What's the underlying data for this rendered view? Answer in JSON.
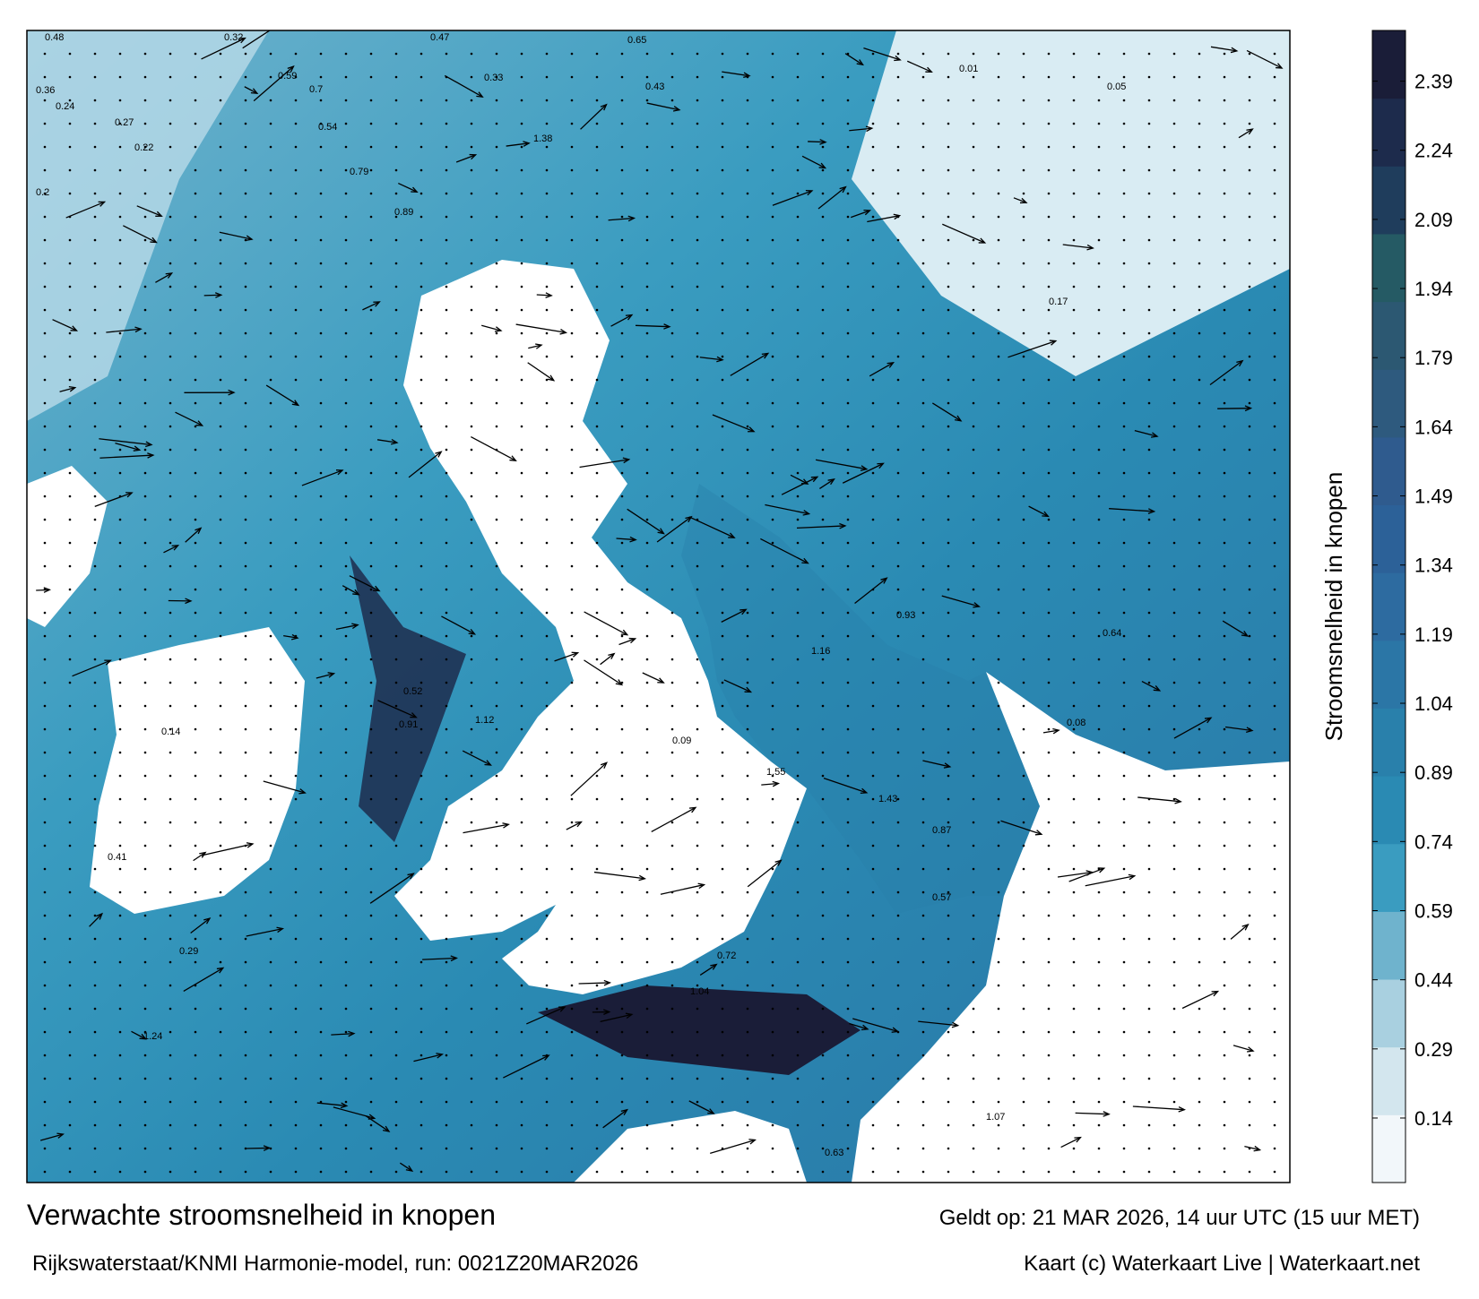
{
  "title": "Verwachte stroomsnelheid in knopen",
  "subtitle": "Rijkswaterstaat/KNMI Harmonie-model, run: 0021Z20MAR2026",
  "valid_time": "Geldt op: 21 MAR 2026, 14 uur UTC (15 uur MET)",
  "credit": "Kaart (c) Waterkaart Live | Waterkaart.net",
  "colorbar": {
    "label": "Stroomsnelheid in knopen",
    "lim": [
      0,
      2.5
    ],
    "ticks": [
      0.14,
      0.29,
      0.44,
      0.59,
      0.74,
      0.89,
      1.04,
      1.19,
      1.34,
      1.49,
      1.64,
      1.79,
      1.94,
      2.09,
      2.24,
      2.39
    ],
    "colors": [
      "#f2f7fa",
      "#d3e6ee",
      "#a9d0e0",
      "#6fb3cd",
      "#3a9cc0",
      "#2a8ab3",
      "#2980ab",
      "#2b76a6",
      "#2d6ba0",
      "#2c6198",
      "#2f5b8e",
      "#2e5a7e",
      "#2c5872",
      "#255a64",
      "#1f3d5c",
      "#1d2b4c",
      "#1a1d38"
    ]
  },
  "map_labels": [
    "0.48",
    "0.32",
    "0.36",
    "0.24",
    "0.27",
    "0.22",
    "0.2",
    "0.47",
    "0.59",
    "0.7",
    "0.89",
    "1.38",
    "0.65",
    "0.43",
    "0.05",
    "0.01",
    "0.33",
    "0.54",
    "0.79",
    "0.17",
    "0.93",
    "1.16",
    "1.55",
    "0.72",
    "1.04",
    "0.52",
    "0.91",
    "1.12",
    "0.14",
    "0.41",
    "0.87",
    "1.07",
    "0.63",
    "0.29",
    "1.24",
    "0.09",
    "1.43",
    "0.57",
    "0.64",
    "0.08"
  ]
}
